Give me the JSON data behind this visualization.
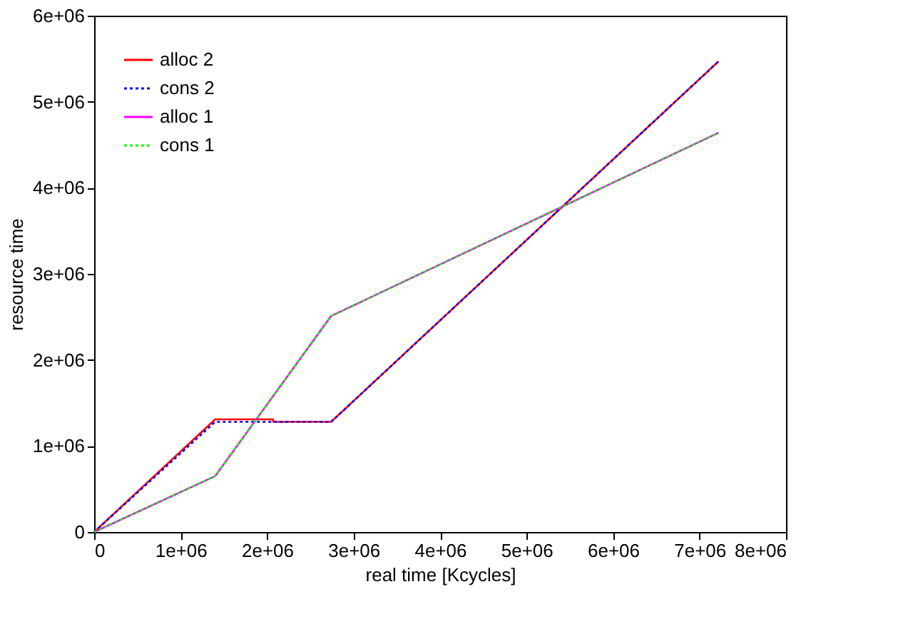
{
  "chart_data": {
    "type": "line",
    "xlabel": "real time [Kcycles]",
    "ylabel": "resource time",
    "xlim": [
      0,
      8000000
    ],
    "ylim": [
      0,
      6000000
    ],
    "xticks": [
      {
        "value": 0,
        "label": "0"
      },
      {
        "value": 1000000,
        "label": "1e+06"
      },
      {
        "value": 2000000,
        "label": "2e+06"
      },
      {
        "value": 3000000,
        "label": "3e+06"
      },
      {
        "value": 4000000,
        "label": "4e+06"
      },
      {
        "value": 5000000,
        "label": "5e+06"
      },
      {
        "value": 6000000,
        "label": "6e+06"
      },
      {
        "value": 7000000,
        "label": "7e+06"
      },
      {
        "value": 8000000,
        "label": "8e+06"
      }
    ],
    "yticks": [
      {
        "value": 0,
        "label": "0"
      },
      {
        "value": 1000000,
        "label": "1e+06"
      },
      {
        "value": 2000000,
        "label": "2e+06"
      },
      {
        "value": 3000000,
        "label": "3e+06"
      },
      {
        "value": 4000000,
        "label": "4e+06"
      },
      {
        "value": 5000000,
        "label": "5e+06"
      },
      {
        "value": 6000000,
        "label": "6e+06"
      }
    ],
    "grid": false,
    "legend": "top left",
    "marker": "none",
    "series": [
      {
        "name": "alloc 2",
        "color": "#ff0000",
        "line_style": "solid",
        "x": [
          0,
          1400000,
          2070000,
          2070000,
          2740000,
          7220000
        ],
        "values": [
          0,
          1310000,
          1310000,
          1280000,
          1280000,
          5470000
        ]
      },
      {
        "name": "cons 2",
        "color": "#0000ff",
        "line_style": "dotted",
        "x": [
          0,
          1400000,
          2740000,
          7220000
        ],
        "values": [
          0,
          1280000,
          1280000,
          5470000
        ]
      },
      {
        "name": "alloc 1",
        "color": "#ff00ff",
        "line_style": "solid",
        "x": [
          0,
          1400000,
          2740000,
          7220000
        ],
        "values": [
          0,
          650000,
          2510000,
          4640000
        ]
      },
      {
        "name": "cons 1",
        "color": "#00ff00",
        "line_style": "dotted",
        "x": [
          0,
          1400000,
          2740000,
          7220000
        ],
        "values": [
          0,
          650000,
          2510000,
          4640000
        ]
      }
    ]
  }
}
